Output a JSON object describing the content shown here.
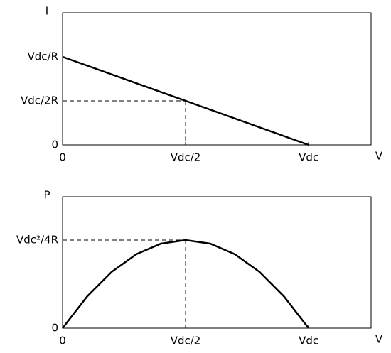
{
  "chart_data": [
    {
      "type": "line",
      "y_label": "I",
      "x_label": "V",
      "x": [
        0,
        1
      ],
      "series": [
        {
          "color": "#000000",
          "values": [
            1,
            0
          ]
        }
      ],
      "xlim": [
        0,
        1.254
      ],
      "ylim": [
        0,
        1.5
      ],
      "xticks": [
        0,
        {
          "value": 0.5,
          "label": "Vdc/2"
        },
        {
          "value": 1,
          "label": "Vdc"
        }
      ],
      "yticks": [
        0,
        {
          "value": 0.5,
          "label": "Vdc/2R"
        },
        {
          "value": 1,
          "label": "Vdc/R"
        }
      ],
      "guides": [
        {
          "x": 0.5,
          "y": 0.5
        }
      ]
    },
    {
      "type": "line",
      "y_label": "P",
      "x_label": "V",
      "x": [
        0,
        0.1,
        0.2,
        0.3,
        0.4,
        0.5,
        0.6,
        0.7,
        0.8,
        0.9,
        1
      ],
      "series": [
        {
          "color": "#000000",
          "values": [
            0,
            0.09,
            0.16,
            0.21,
            0.24,
            0.25,
            0.24,
            0.21,
            0.16,
            0.09,
            0
          ]
        }
      ],
      "xlim": [
        0,
        1.254
      ],
      "ylim": [
        0,
        0.373
      ],
      "xticks": [
        0,
        {
          "value": 0.5,
          "label": "Vdc/2"
        },
        {
          "value": 1,
          "label": "Vdc"
        }
      ],
      "yticks": [
        0,
        {
          "value": 0.25,
          "label": "Vdc²/4R"
        }
      ],
      "guides": [
        {
          "x": 0.5,
          "y": 0.25
        }
      ]
    }
  ]
}
